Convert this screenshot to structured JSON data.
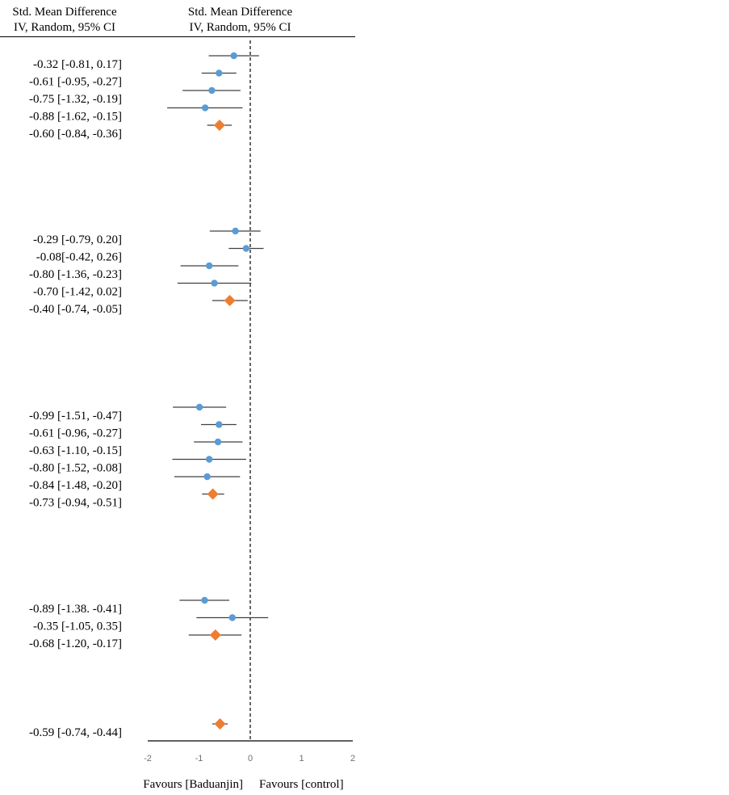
{
  "header": {
    "left_line1": "Std. Mean Difference",
    "left_line2": "IV, Random, 95% CI",
    "right_line1": "Std. Mean Difference",
    "right_line2": "IV, Random, 95% CI"
  },
  "chart_data": {
    "type": "forest",
    "xlim": [
      -2,
      2
    ],
    "x_ticks": [
      "-2",
      "-1",
      "0",
      "1",
      "2"
    ],
    "reference_line": 0,
    "favours_left": "Favours [Baduanjin]",
    "favours_right": "Favours [control]",
    "colors": {
      "study": "#5b9bd5",
      "pooled": "#ed7d31",
      "ci_line": "#404040"
    },
    "groups": [
      {
        "rows": [
          {
            "label": "-0.32 [-0.81, 0.17]",
            "est": -0.32,
            "lo": -0.81,
            "hi": 0.17,
            "kind": "study"
          },
          {
            "label": "-0.61 [-0.95, -0.27]",
            "est": -0.61,
            "lo": -0.95,
            "hi": -0.27,
            "kind": "study"
          },
          {
            "label": "-0.75 [-1.32, -0.19]",
            "est": -0.75,
            "lo": -1.32,
            "hi": -0.19,
            "kind": "study"
          },
          {
            "label": "-0.88 [-1.62, -0.15]",
            "est": -0.88,
            "lo": -1.62,
            "hi": -0.15,
            "kind": "study"
          },
          {
            "label": "-0.60 [-0.84, -0.36]",
            "est": -0.6,
            "lo": -0.84,
            "hi": -0.36,
            "kind": "pooled"
          }
        ]
      },
      {
        "rows": [
          {
            "label": "-0.29 [-0.79, 0.20]",
            "est": -0.29,
            "lo": -0.79,
            "hi": 0.2,
            "kind": "study"
          },
          {
            "label": "-0.08[-0.42, 0.26]",
            "est": -0.08,
            "lo": -0.42,
            "hi": 0.26,
            "kind": "study"
          },
          {
            "label": "-0.80 [-1.36, -0.23]",
            "est": -0.8,
            "lo": -1.36,
            "hi": -0.23,
            "kind": "study"
          },
          {
            "label": "-0.70 [-1.42, 0.02]",
            "est": -0.7,
            "lo": -1.42,
            "hi": 0.02,
            "kind": "study"
          },
          {
            "label": "-0.40 [-0.74, -0.05]",
            "est": -0.4,
            "lo": -0.74,
            "hi": -0.05,
            "kind": "pooled"
          }
        ]
      },
      {
        "rows": [
          {
            "label": "-0.99 [-1.51, -0.47]",
            "est": -0.99,
            "lo": -1.51,
            "hi": -0.47,
            "kind": "study"
          },
          {
            "label": "-0.61 [-0.96, -0.27]",
            "est": -0.61,
            "lo": -0.96,
            "hi": -0.27,
            "kind": "study"
          },
          {
            "label": "-0.63 [-1.10, -0.15]",
            "est": -0.63,
            "lo": -1.1,
            "hi": -0.15,
            "kind": "study"
          },
          {
            "label": "-0.80 [-1.52, -0.08]",
            "est": -0.8,
            "lo": -1.52,
            "hi": -0.08,
            "kind": "study"
          },
          {
            "label": "-0.84 [-1.48, -0.20]",
            "est": -0.84,
            "lo": -1.48,
            "hi": -0.2,
            "kind": "study"
          },
          {
            "label": "-0.73 [-0.94, -0.51]",
            "est": -0.73,
            "lo": -0.94,
            "hi": -0.51,
            "kind": "pooled"
          }
        ]
      },
      {
        "rows": [
          {
            "label": "-0.89 [-1.38. -0.41]",
            "est": -0.89,
            "lo": -1.38,
            "hi": -0.41,
            "kind": "study"
          },
          {
            "label": "-0.35 [-1.05, 0.35]",
            "est": -0.35,
            "lo": -1.05,
            "hi": 0.35,
            "kind": "study"
          },
          {
            "label": "-0.68 [-1.20, -0.17]",
            "est": -0.68,
            "lo": -1.2,
            "hi": -0.17,
            "kind": "pooled"
          }
        ]
      },
      {
        "rows": [
          {
            "label": "-0.59 [-0.74, -0.44]",
            "est": -0.59,
            "lo": -0.74,
            "hi": -0.44,
            "kind": "pooled"
          }
        ]
      }
    ]
  }
}
